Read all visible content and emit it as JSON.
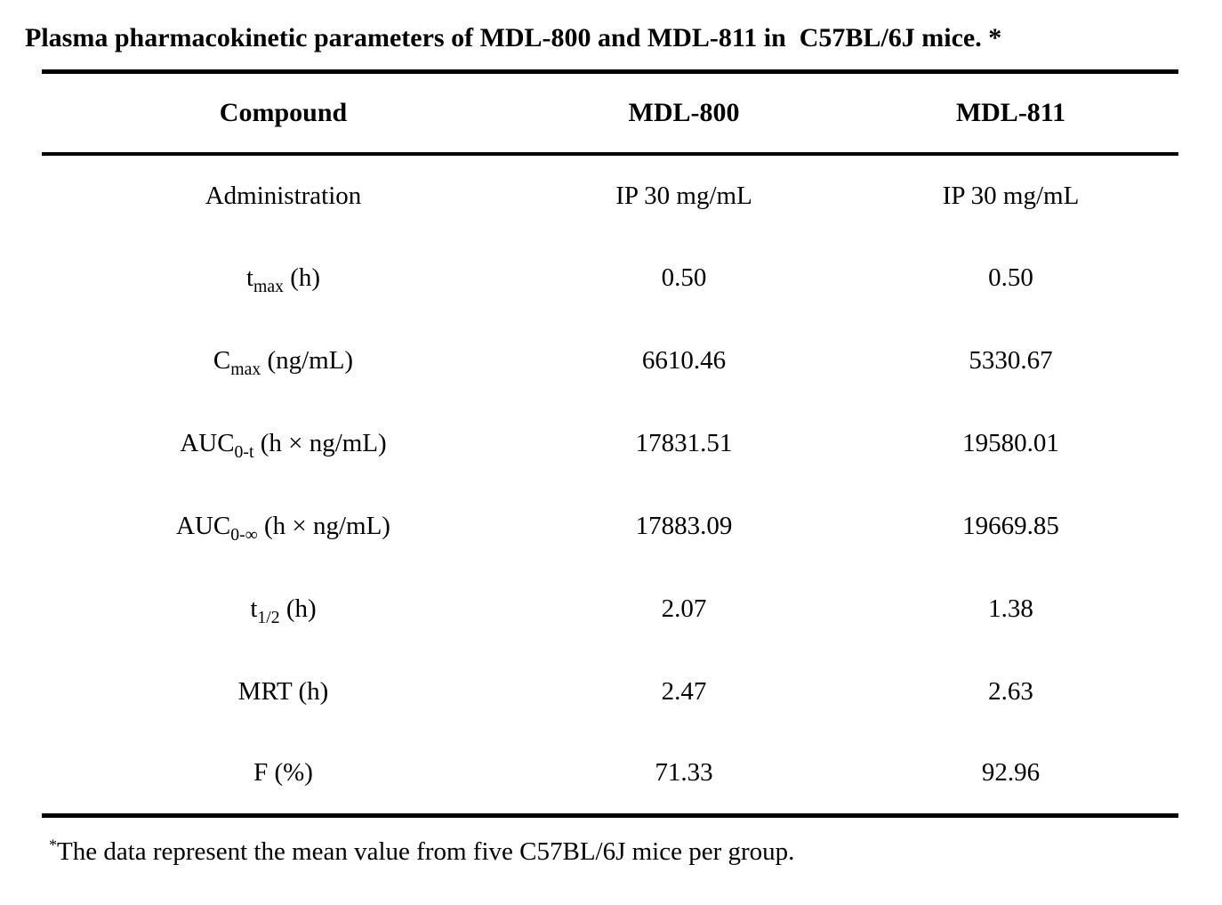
{
  "title": "Plasma pharmacokinetic parameters of MDL-800 and MDL-811 in  C57BL/6J mice. *",
  "table": {
    "headers": [
      "Compound",
      "MDL-800",
      "MDL-811"
    ],
    "rows": [
      {
        "label_pre": "Administration",
        "label_sub": "",
        "label_post": "",
        "mdl800": "IP 30 mg/mL",
        "mdl811": "IP 30 mg/mL"
      },
      {
        "label_pre": "t",
        "label_sub": "max",
        "label_post": " (h)",
        "mdl800": "0.50",
        "mdl811": "0.50"
      },
      {
        "label_pre": "C",
        "label_sub": "max",
        "label_post": " (ng/mL)",
        "mdl800": "6610.46",
        "mdl811": "5330.67"
      },
      {
        "label_pre": "AUC",
        "label_sub": "0-t",
        "label_post": " (h × ng/mL)",
        "mdl800": "17831.51",
        "mdl811": "19580.01"
      },
      {
        "label_pre": "AUC",
        "label_sub": "0-∞",
        "label_post": " (h × ng/mL)",
        "mdl800": "17883.09",
        "mdl811": "19669.85"
      },
      {
        "label_pre": "t",
        "label_sub": "1/2",
        "label_post": " (h)",
        "mdl800": "2.07",
        "mdl811": "1.38"
      },
      {
        "label_pre": "MRT (h)",
        "label_sub": "",
        "label_post": "",
        "mdl800": "2.47",
        "mdl811": "2.63"
      },
      {
        "label_pre": "F (%)",
        "label_sub": "",
        "label_post": "",
        "mdl800": "71.33",
        "mdl811": "92.96"
      }
    ]
  },
  "footnote": {
    "marker": "*",
    "text": "The data represent the mean value from five C57BL/6J mice per group."
  },
  "colors": {
    "text": "#000000",
    "background": "#ffffff",
    "rule": "#000000"
  },
  "chart_data": {
    "type": "table",
    "title": "Plasma pharmacokinetic parameters of MDL-800 and MDL-811 in C57BL/6J mice.",
    "columns": [
      "Compound",
      "MDL-800",
      "MDL-811"
    ],
    "rows": [
      [
        "Administration",
        "IP 30 mg/mL",
        "IP 30 mg/mL"
      ],
      [
        "tmax (h)",
        0.5,
        0.5
      ],
      [
        "Cmax (ng/mL)",
        6610.46,
        5330.67
      ],
      [
        "AUC0-t (h × ng/mL)",
        17831.51,
        19580.01
      ],
      [
        "AUC0-∞ (h × ng/mL)",
        17883.09,
        19669.85
      ],
      [
        "t1/2 (h)",
        2.07,
        1.38
      ],
      [
        "MRT (h)",
        2.47,
        2.63
      ],
      [
        "F (%)",
        71.33,
        92.96
      ]
    ]
  }
}
